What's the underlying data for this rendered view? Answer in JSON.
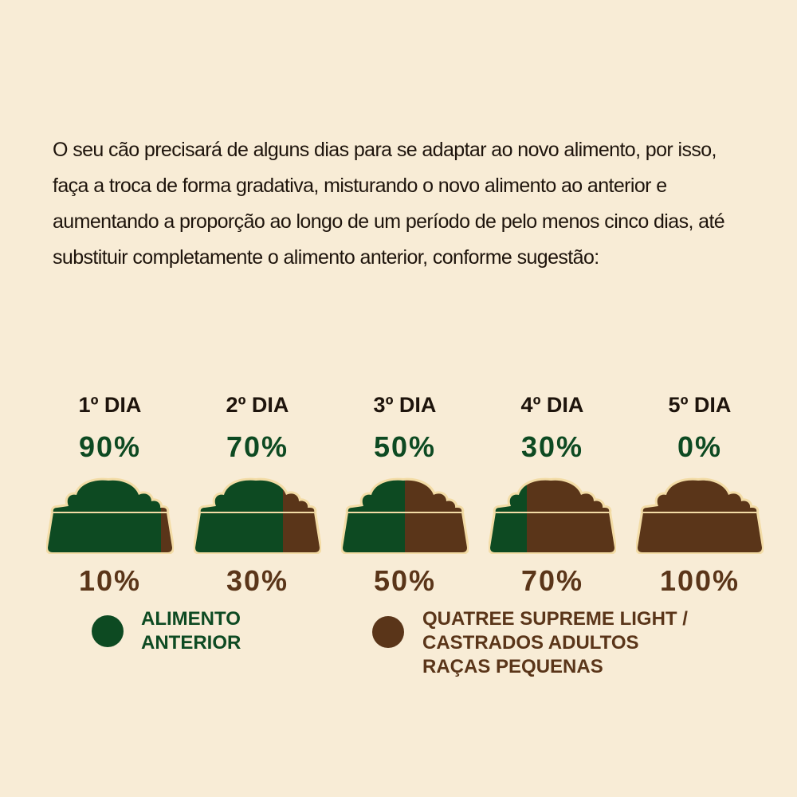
{
  "chart_data": {
    "type": "bowl",
    "text": "O seu cão precisará de alguns dias para se adaptar ao novo alimento, por isso, faça a troca de forma gradativa, misturando o novo alimento ao anterior e aumentando a proporção ao longo de um período de pelo menos cinco dias, até substituir completamente o alimento anterior, conforme sugestão:",
    "categories": [
      "1º DIA",
      "2º DIA",
      "3º DIA",
      "4º DIA",
      "5º DIA"
    ],
    "series": [
      {
        "name": "ALIMENTO ANTERIOR",
        "color": "#0d4a22",
        "values": [
          90,
          70,
          50,
          30,
          0
        ],
        "value_labels": [
          "90%",
          "70%",
          "50%",
          "30%",
          "0%"
        ]
      },
      {
        "name": "QUATREE SUPREME LIGHT / CASTRADOS ADULTOS RAÇAS PEQUENAS",
        "color": "#5a3519",
        "values": [
          10,
          30,
          50,
          70,
          100
        ],
        "value_labels": [
          "10%",
          "30%",
          "50%",
          "70%",
          "100%"
        ]
      }
    ]
  }
}
